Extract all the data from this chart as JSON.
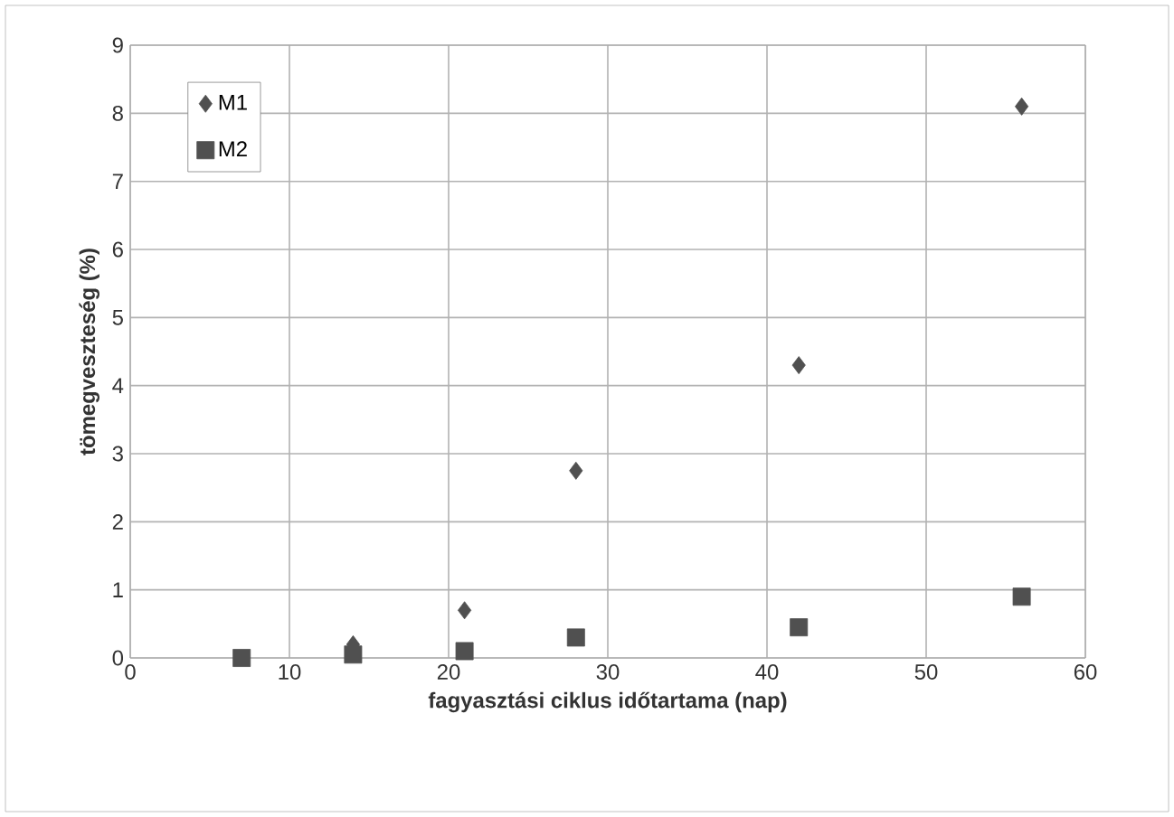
{
  "chart_data": {
    "type": "scatter",
    "xlabel": "fagyasztási ciklus időtartama (nap)",
    "ylabel": "tömegveszteség (%)",
    "series": [
      {
        "name": "M1",
        "color": "#505050",
        "marker": "diamond",
        "x": [
          14,
          21,
          28,
          42,
          56
        ],
        "values": [
          0.2,
          0.7,
          2.75,
          4.3,
          8.1
        ]
      },
      {
        "name": "M2",
        "color": "#505050",
        "marker": "square",
        "x": [
          7,
          14,
          21,
          28,
          42,
          56
        ],
        "values": [
          0,
          0.05,
          0.1,
          0.3,
          0.45,
          0.9
        ]
      }
    ],
    "xlim": [
      0,
      60
    ],
    "xticks": [
      0,
      10,
      20,
      30,
      40,
      50,
      60
    ],
    "ylim": [
      0,
      9
    ],
    "yticks": [
      0,
      1,
      2,
      3,
      4,
      5,
      6,
      7,
      8,
      9
    ],
    "grid": true,
    "legend": "top left"
  }
}
